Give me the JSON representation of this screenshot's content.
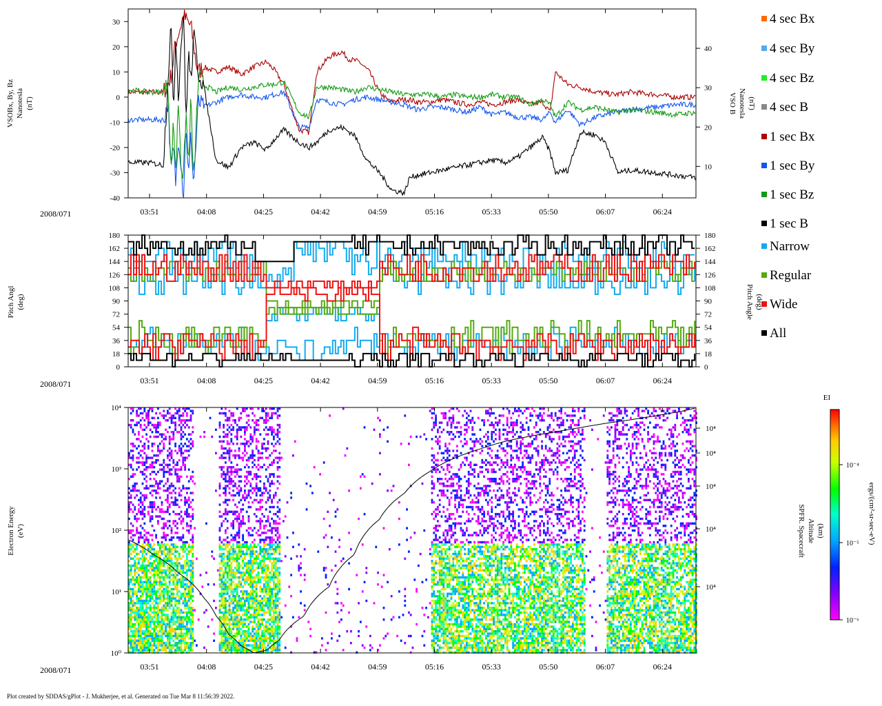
{
  "date_label": "2008/071",
  "footer": "Plot created by SDDAS/gPlot - J. Mukherjee, et al.  Generated on Tue Mar 8 11:56:39 2022.",
  "time_ticks": [
    "03:51",
    "04:08",
    "04:25",
    "04:42",
    "04:59",
    "05:16",
    "05:33",
    "05:50",
    "06:07",
    "06:24"
  ],
  "legend": [
    {
      "label": "4 sec Bx",
      "color": "#ff6a00"
    },
    {
      "label": "4 sec By",
      "color": "#55aaee"
    },
    {
      "label": "4 sec Bz",
      "color": "#22ee22"
    },
    {
      "label": "4 sec B",
      "color": "#888888"
    },
    {
      "label": "1 sec Bx",
      "color": "#aa0000"
    },
    {
      "label": "1 sec By",
      "color": "#1155ee"
    },
    {
      "label": "1 sec Bz",
      "color": "#119911"
    },
    {
      "label": "1 sec B",
      "color": "#000000"
    },
    {
      "label": "Narrow",
      "color": "#11aaee"
    },
    {
      "label": "Regular",
      "color": "#55aa11"
    },
    {
      "label": "Wide",
      "color": "#ee1111"
    },
    {
      "label": "All",
      "color": "#000000"
    }
  ],
  "colorbar": {
    "title": "EI",
    "label": "ergs/(cm²-sr-sec-eV)",
    "ticks": [
      "10⁻⁴",
      "10⁻⁵",
      "10⁻⁶"
    ]
  },
  "chart_data": [
    {
      "type": "line",
      "ylabel_left": [
        "VSOBx, By, Bz",
        "Nanotesla",
        "(nT)"
      ],
      "ylabel_right": [
        "VSO B",
        "Nanotesla",
        "(nT)"
      ],
      "ylim_left": [
        -40,
        35
      ],
      "ylim_right": [
        2,
        50
      ],
      "left_ticks": [
        30,
        20,
        10,
        0,
        -10,
        -20,
        -30,
        -40
      ],
      "right_ticks": [
        40,
        30,
        20,
        10
      ],
      "series": [
        {
          "name": "1 sec Bx",
          "color": "#aa0000",
          "x": [
            0,
            8,
            14,
            17,
            18,
            19,
            22,
            25,
            27,
            28,
            30,
            35,
            40,
            45,
            50,
            55,
            58,
            62,
            68,
            72,
            75,
            80,
            85,
            88,
            92,
            96,
            100,
            104,
            108,
            112,
            115,
            120,
            125,
            130,
            135,
            140,
            145,
            150,
            155,
            160,
            165,
            168,
            170,
            175,
            180,
            186,
            194,
            200,
            210,
            218,
            226
          ],
          "y": [
            2,
            2,
            2,
            8,
            15,
            22,
            32,
            28,
            14,
            10,
            12,
            10,
            12,
            9,
            12,
            14,
            11,
            5,
            -13,
            -14,
            10,
            16,
            18,
            15,
            14,
            10,
            2,
            -2,
            -1,
            -1,
            -2,
            -2,
            -1,
            -2,
            -3,
            -2,
            -3,
            -2,
            -1,
            -3,
            -2,
            -6,
            10,
            5,
            4,
            2,
            1,
            2,
            1,
            0,
            0
          ]
        },
        {
          "name": "1 sec By",
          "color": "#1155ee",
          "x": [
            0,
            8,
            14,
            16,
            17,
            18,
            19,
            20,
            21,
            22,
            23,
            24,
            25,
            26,
            28,
            30,
            35,
            40,
            45,
            50,
            55,
            58,
            62,
            68,
            72,
            75,
            80,
            85,
            90,
            95,
            100,
            105,
            110,
            115,
            120,
            125,
            130,
            135,
            140,
            145,
            150,
            155,
            160,
            165,
            168,
            170,
            175,
            180,
            186,
            194,
            200,
            210,
            218,
            226
          ],
          "y": [
            -9,
            -9,
            -9,
            -2,
            -30,
            -20,
            -35,
            -15,
            -25,
            -40,
            -10,
            -33,
            -14,
            -35,
            -2,
            -4,
            -2,
            0,
            1,
            0,
            0,
            1,
            2,
            -12,
            -12,
            -1,
            -2,
            -3,
            -1,
            0,
            -1,
            -2,
            -3,
            -5,
            -4,
            -4,
            -5,
            -6,
            -4,
            -7,
            -6,
            -8,
            -8,
            -9,
            -6,
            -10,
            -5,
            -11,
            -8,
            -6,
            -5,
            -4,
            -3,
            -3
          ]
        },
        {
          "name": "1 sec Bz",
          "color": "#119911",
          "x": [
            0,
            8,
            14,
            16,
            17,
            18,
            19,
            20,
            21,
            22,
            23,
            24,
            25,
            26,
            28,
            30,
            35,
            40,
            45,
            50,
            55,
            58,
            62,
            68,
            72,
            75,
            80,
            85,
            90,
            95,
            100,
            105,
            110,
            115,
            120,
            125,
            130,
            135,
            140,
            145,
            150,
            155,
            160,
            165,
            168,
            170,
            175,
            180,
            186,
            194,
            200,
            210,
            218,
            226
          ],
          "y": [
            3,
            2,
            2,
            5,
            -32,
            -10,
            -30,
            0,
            -25,
            -33,
            -5,
            -28,
            0,
            -35,
            8,
            5,
            2,
            4,
            3,
            4,
            5,
            5,
            6,
            -6,
            -8,
            4,
            4,
            3,
            2,
            4,
            3,
            2,
            1,
            1,
            1,
            0,
            1,
            0,
            0,
            1,
            0,
            0,
            -3,
            -1,
            -3,
            -8,
            -2,
            -5,
            -4,
            -6,
            -5,
            -6,
            -7,
            -6
          ]
        },
        {
          "name": "1 sec B",
          "color": "#000000",
          "x": [
            0,
            8,
            14,
            16,
            17,
            18,
            19,
            20,
            21,
            22,
            23,
            24,
            25,
            26,
            28,
            30,
            35,
            40,
            45,
            50,
            55,
            58,
            62,
            68,
            72,
            75,
            80,
            85,
            90,
            95,
            100,
            105,
            110,
            112,
            115,
            120,
            125,
            130,
            135,
            140,
            145,
            150,
            155,
            160,
            165,
            168,
            170,
            175,
            180,
            186,
            190,
            195,
            200,
            210,
            218,
            226
          ],
          "y": [
            -26,
            -26,
            -27,
            10,
            30,
            -5,
            25,
            0,
            20,
            35,
            -10,
            18,
            5,
            25,
            10,
            5,
            -25,
            -28,
            -20,
            -18,
            -21,
            -17,
            -13,
            -18,
            -20,
            -18,
            -13,
            -12,
            -15,
            -25,
            -30,
            -37,
            -38,
            -32,
            -31,
            -30,
            -29,
            -28,
            -27,
            -26,
            -25,
            -26,
            -24,
            -20,
            -16,
            -22,
            -30,
            -29,
            -14,
            -15,
            -18,
            -30,
            -29,
            -30,
            -31,
            -32
          ]
        }
      ]
    },
    {
      "type": "line",
      "ylabel_left": [
        "Pitch Angl",
        "(deg)"
      ],
      "ylabel_right": [
        "Pitch Angle",
        "(deg)"
      ],
      "ylim": [
        0,
        180
      ],
      "ticks": [
        180,
        162,
        144,
        126,
        108,
        90,
        72,
        54,
        36,
        18,
        0
      ],
      "series": [
        {
          "name": "All",
          "color": "#000000"
        },
        {
          "name": "Narrow",
          "color": "#11aaee"
        },
        {
          "name": "Regular",
          "color": "#55aa11"
        },
        {
          "name": "Wide",
          "color": "#ee1111"
        }
      ]
    },
    {
      "type": "heatmap",
      "ylabel_left": [
        "Electron Energy",
        "(eV)"
      ],
      "ylabel_right": [
        "SPFR. Spacecraft",
        "Altitude",
        "(km)"
      ],
      "ylim": [
        1,
        10000
      ],
      "yscale": "log",
      "left_ticks": [
        "10⁴",
        "10³",
        "10²",
        "10¹",
        "10⁰"
      ],
      "right_ticks": [
        "10⁴",
        "10⁴",
        "10⁴",
        "10⁴",
        "10⁴"
      ],
      "altitude_trace": {
        "x": [
          0,
          10,
          20,
          30,
          35,
          40,
          45,
          50,
          55,
          60,
          70,
          80,
          90,
          100,
          110,
          120,
          130,
          140,
          150,
          160,
          170,
          180,
          190,
          200,
          210,
          220,
          226
        ],
        "y": [
          70,
          40,
          20,
          8,
          4,
          2,
          1.3,
          1,
          1.1,
          1.6,
          4,
          12,
          40,
          150,
          400,
          900,
          1500,
          2100,
          2800,
          3400,
          4000,
          4700,
          5500,
          6300,
          7300,
          8600,
          9800
        ]
      }
    }
  ]
}
